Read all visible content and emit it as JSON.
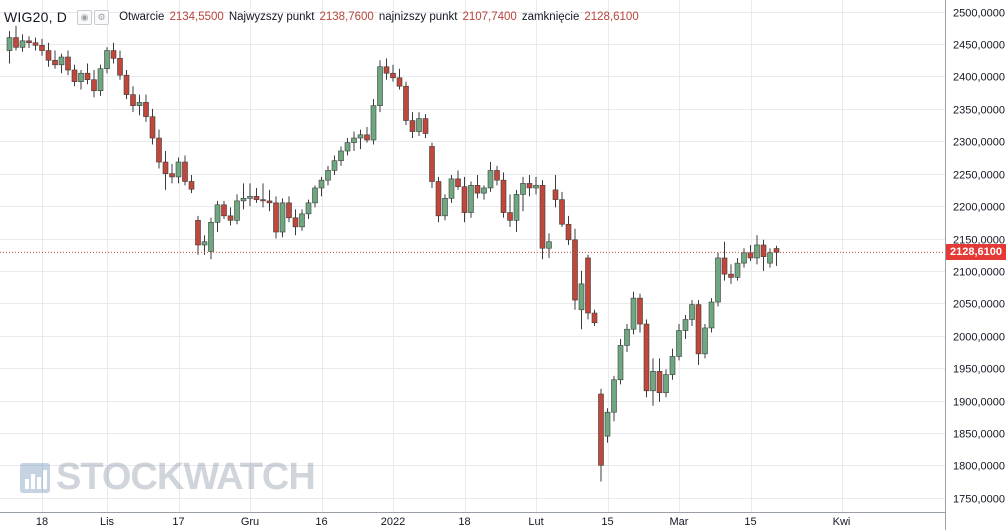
{
  "header": {
    "ticker": "WIG20, D",
    "open_label": "Otwarcie",
    "open_value": "2134,5500",
    "high_label": "Najwyzszy punkt",
    "high_value": "2138,7600",
    "low_label": "najnizszy punkt",
    "low_value": "2107,7400",
    "close_label": "zamknięcie",
    "close_value": "2128,6100"
  },
  "watermark": {
    "text": "STOCKWATCH"
  },
  "colors": {
    "up": "#6fa880",
    "down": "#c0473b",
    "last_line": "#c0473b",
    "badge": "#e53935",
    "grid": "#e8eaed"
  },
  "chart_data": {
    "type": "candlestick",
    "title": "WIG20, D",
    "y_ticks": [
      "1750,0000",
      "1800,0000",
      "1850,0000",
      "1900,0000",
      "1950,0000",
      "2000,0000",
      "2050,0000",
      "2100,0000",
      "2150,0000",
      "2200,0000",
      "2250,0000",
      "2300,0000",
      "2350,0000",
      "2400,0000",
      "2450,0000",
      "2500,0000"
    ],
    "ylim": [
      1728,
      2518
    ],
    "x_ticks": [
      {
        "label": "18",
        "index": 5
      },
      {
        "label": "Lis",
        "index": 15
      },
      {
        "label": "17",
        "index": 26
      },
      {
        "label": "Gru",
        "index": 37
      },
      {
        "label": "16",
        "index": 48
      },
      {
        "label": "2022",
        "index": 59
      },
      {
        "label": "18",
        "index": 70
      },
      {
        "label": "Lut",
        "index": 81
      },
      {
        "label": "15",
        "index": 92
      },
      {
        "label": "Mar",
        "index": 103
      },
      {
        "label": "15",
        "index": 114
      },
      {
        "label": "Kwi",
        "index": 128
      }
    ],
    "last_price": 2128.61,
    "last_price_label": "2128,6100",
    "candles": [
      [
        2440,
        2470,
        2420,
        2460
      ],
      [
        2460,
        2478,
        2440,
        2445
      ],
      [
        2445,
        2465,
        2438,
        2455
      ],
      [
        2455,
        2462,
        2444,
        2452
      ],
      [
        2452,
        2460,
        2440,
        2448
      ],
      [
        2448,
        2458,
        2432,
        2440
      ],
      [
        2440,
        2452,
        2415,
        2425
      ],
      [
        2425,
        2440,
        2412,
        2418
      ],
      [
        2418,
        2435,
        2405,
        2430
      ],
      [
        2430,
        2440,
        2402,
        2410
      ],
      [
        2410,
        2418,
        2385,
        2392
      ],
      [
        2392,
        2410,
        2380,
        2405
      ],
      [
        2405,
        2420,
        2388,
        2395
      ],
      [
        2395,
        2410,
        2368,
        2378
      ],
      [
        2378,
        2418,
        2370,
        2412
      ],
      [
        2412,
        2445,
        2405,
        2440
      ],
      [
        2440,
        2452,
        2420,
        2428
      ],
      [
        2428,
        2440,
        2395,
        2402
      ],
      [
        2402,
        2410,
        2365,
        2372
      ],
      [
        2372,
        2385,
        2345,
        2355
      ],
      [
        2355,
        2372,
        2340,
        2360
      ],
      [
        2360,
        2372,
        2330,
        2338
      ],
      [
        2338,
        2350,
        2295,
        2305
      ],
      [
        2305,
        2318,
        2258,
        2268
      ],
      [
        2268,
        2285,
        2225,
        2250
      ],
      [
        2250,
        2265,
        2235,
        2245
      ],
      [
        2245,
        2275,
        2235,
        2268
      ],
      [
        2268,
        2278,
        2232,
        2238
      ],
      [
        2238,
        2248,
        2220,
        2226
      ],
      [
        2178,
        2185,
        2125,
        2140
      ],
      [
        2140,
        2155,
        2125,
        2145
      ],
      [
        2130,
        2182,
        2118,
        2175
      ],
      [
        2175,
        2208,
        2160,
        2202
      ],
      [
        2202,
        2208,
        2180,
        2185
      ],
      [
        2185,
        2198,
        2170,
        2178
      ],
      [
        2178,
        2218,
        2172,
        2208
      ],
      [
        2208,
        2235,
        2195,
        2212
      ],
      [
        2212,
        2235,
        2200,
        2215
      ],
      [
        2215,
        2228,
        2205,
        2210
      ],
      [
        2210,
        2235,
        2198,
        2208
      ],
      [
        2208,
        2225,
        2192,
        2205
      ],
      [
        2205,
        2215,
        2150,
        2160
      ],
      [
        2160,
        2212,
        2152,
        2205
      ],
      [
        2205,
        2215,
        2175,
        2182
      ],
      [
        2182,
        2195,
        2155,
        2168
      ],
      [
        2168,
        2195,
        2162,
        2188
      ],
      [
        2188,
        2210,
        2180,
        2205
      ],
      [
        2205,
        2232,
        2198,
        2228
      ],
      [
        2228,
        2245,
        2215,
        2240
      ],
      [
        2240,
        2262,
        2232,
        2255
      ],
      [
        2255,
        2278,
        2248,
        2270
      ],
      [
        2270,
        2292,
        2262,
        2285
      ],
      [
        2285,
        2305,
        2278,
        2298
      ],
      [
        2298,
        2315,
        2285,
        2305
      ],
      [
        2305,
        2318,
        2288,
        2310
      ],
      [
        2310,
        2322,
        2298,
        2302
      ],
      [
        2302,
        2365,
        2295,
        2355
      ],
      [
        2355,
        2425,
        2345,
        2415
      ],
      [
        2415,
        2428,
        2395,
        2405
      ],
      [
        2405,
        2418,
        2392,
        2398
      ],
      [
        2398,
        2412,
        2380,
        2385
      ],
      [
        2385,
        2392,
        2325,
        2332
      ],
      [
        2332,
        2345,
        2305,
        2315
      ],
      [
        2315,
        2345,
        2308,
        2335
      ],
      [
        2335,
        2342,
        2305,
        2312
      ],
      [
        2292,
        2298,
        2228,
        2238
      ],
      [
        2238,
        2245,
        2175,
        2185
      ],
      [
        2185,
        2218,
        2178,
        2212
      ],
      [
        2212,
        2248,
        2205,
        2242
      ],
      [
        2242,
        2255,
        2225,
        2230
      ],
      [
        2230,
        2245,
        2175,
        2190
      ],
      [
        2190,
        2238,
        2182,
        2232
      ],
      [
        2232,
        2248,
        2212,
        2220
      ],
      [
        2220,
        2232,
        2210,
        2228
      ],
      [
        2228,
        2268,
        2222,
        2255
      ],
      [
        2255,
        2262,
        2232,
        2240
      ],
      [
        2240,
        2252,
        2182,
        2190
      ],
      [
        2190,
        2218,
        2168,
        2178
      ],
      [
        2178,
        2225,
        2160,
        2218
      ],
      [
        2218,
        2245,
        2192,
        2235
      ],
      [
        2235,
        2248,
        2215,
        2228
      ],
      [
        2228,
        2245,
        2218,
        2232
      ],
      [
        2232,
        2240,
        2118,
        2135
      ],
      [
        2135,
        2158,
        2120,
        2145
      ],
      [
        2225,
        2248,
        2198,
        2210
      ],
      [
        2210,
        2222,
        2168,
        2172
      ],
      [
        2172,
        2185,
        2140,
        2148
      ],
      [
        2148,
        2165,
        2040,
        2055
      ],
      [
        2040,
        2100,
        2010,
        2080
      ],
      [
        2120,
        2125,
        2025,
        2035
      ],
      [
        2035,
        2040,
        2015,
        2020
      ],
      [
        1910,
        1918,
        1775,
        1800
      ],
      [
        1845,
        1888,
        1835,
        1882
      ],
      [
        1882,
        1938,
        1868,
        1932
      ],
      [
        1932,
        1995,
        1925,
        1985
      ],
      [
        1985,
        2018,
        1975,
        2010
      ],
      [
        2010,
        2068,
        2002,
        2058
      ],
      [
        2058,
        2065,
        2005,
        2018
      ],
      [
        2018,
        2025,
        1905,
        1915
      ],
      [
        1915,
        1965,
        1892,
        1945
      ],
      [
        1945,
        1965,
        1898,
        1912
      ],
      [
        1912,
        1948,
        1905,
        1940
      ],
      [
        1940,
        1980,
        1932,
        1968
      ],
      [
        1968,
        2018,
        1962,
        2008
      ],
      [
        2008,
        2032,
        1995,
        2025
      ],
      [
        2025,
        2055,
        2015,
        2048
      ],
      [
        2048,
        2055,
        1955,
        1972
      ],
      [
        1972,
        2018,
        1965,
        2012
      ],
      [
        2012,
        2058,
        2005,
        2052
      ],
      [
        2052,
        2128,
        2045,
        2120
      ],
      [
        2120,
        2145,
        2085,
        2095
      ],
      [
        2095,
        2110,
        2080,
        2090
      ],
      [
        2090,
        2120,
        2085,
        2112
      ],
      [
        2112,
        2135,
        2105,
        2128
      ],
      [
        2128,
        2140,
        2115,
        2120
      ],
      [
        2120,
        2155,
        2110,
        2140
      ],
      [
        2140,
        2148,
        2100,
        2122
      ],
      [
        2112,
        2135,
        2105,
        2128
      ],
      [
        2134.55,
        2138.76,
        2107.74,
        2128.61
      ]
    ]
  }
}
